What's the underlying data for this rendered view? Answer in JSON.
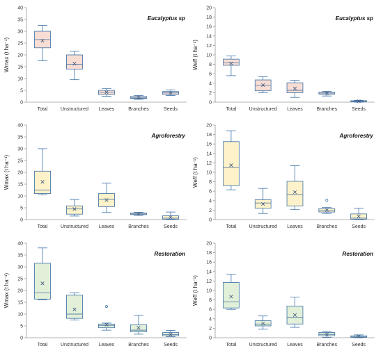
{
  "chart_data": [
    {
      "type": "box",
      "title": "Eucalyptus sp",
      "ylabel": "Wmax (t ha⁻¹)",
      "ylim": [
        0,
        40
      ],
      "yticks": [
        0,
        5,
        10,
        15,
        20,
        25,
        30,
        35,
        40
      ],
      "box_color": "#f8ddd4",
      "categories": [
        "Total",
        "Unstructured",
        "Leaves",
        "Branches",
        "Seeds"
      ],
      "boxes": [
        {
          "min": 17.5,
          "q1": 23,
          "median": 26.5,
          "q3": 30,
          "max": 32.5,
          "mean": 26,
          "outliers": []
        },
        {
          "min": 9.5,
          "q1": 14,
          "median": 16,
          "q3": 20,
          "max": 21.5,
          "mean": 16.3,
          "outliers": []
        },
        {
          "min": 2.5,
          "q1": 3.2,
          "median": 4.2,
          "q3": 5,
          "max": 5.8,
          "mean": 4.2,
          "outliers": []
        },
        {
          "min": 1.2,
          "q1": 1.5,
          "median": 1.8,
          "q3": 2.4,
          "max": 2.8,
          "mean": 1.9,
          "outliers": []
        },
        {
          "min": 2.8,
          "q1": 3.3,
          "median": 3.9,
          "q3": 4.5,
          "max": 5.2,
          "mean": 3.9,
          "outliers": []
        }
      ]
    },
    {
      "type": "box",
      "title": "Eucalyptus sp",
      "ylabel": "Weff (t ha⁻¹)",
      "ylim": [
        0,
        20
      ],
      "yticks": [
        0,
        2,
        4,
        6,
        8,
        10,
        12,
        14,
        16,
        18,
        20
      ],
      "box_color": "#f8ddd4",
      "categories": [
        "Total",
        "Unstructured",
        "Leaves",
        "Branches",
        "Seeds"
      ],
      "boxes": [
        {
          "min": 5.6,
          "q1": 7.8,
          "median": 8.3,
          "q3": 9.1,
          "max": 9.8,
          "mean": 8.2,
          "outliers": []
        },
        {
          "min": 2,
          "q1": 2.4,
          "median": 3.6,
          "q3": 4.7,
          "max": 5.4,
          "mean": 3.6,
          "outliers": []
        },
        {
          "min": 1,
          "q1": 2,
          "median": 2.5,
          "q3": 4.1,
          "max": 4.6,
          "mean": 2.9,
          "outliers": []
        },
        {
          "min": 1.3,
          "q1": 1.7,
          "median": 1.9,
          "q3": 2.1,
          "max": 2.3,
          "mean": 1.9,
          "outliers": []
        },
        {
          "min": 0,
          "q1": 0.1,
          "median": 0.2,
          "q3": 0.3,
          "max": 0.4,
          "mean": 0.2,
          "outliers": []
        }
      ]
    },
    {
      "type": "box",
      "title": "Agroforestry",
      "ylabel": "Wmax (t ha⁻¹)",
      "ylim": [
        0,
        40
      ],
      "yticks": [
        0,
        5,
        10,
        15,
        20,
        25,
        30,
        35,
        40
      ],
      "box_color": "#fdf2c9",
      "categories": [
        "Total",
        "Unstructured",
        "Leaves",
        "Branches",
        "Seeds"
      ],
      "boxes": [
        {
          "min": 10.5,
          "q1": 11,
          "median": 12.5,
          "q3": 20.5,
          "max": 30,
          "mean": 16,
          "outliers": []
        },
        {
          "min": 1.5,
          "q1": 2.3,
          "median": 4.5,
          "q3": 5.8,
          "max": 8.5,
          "mean": 4.5,
          "outliers": []
        },
        {
          "min": 3,
          "q1": 5.5,
          "median": 8.5,
          "q3": 11,
          "max": 15.5,
          "mean": 8.3,
          "outliers": []
        },
        {
          "min": 1.8,
          "q1": 2.1,
          "median": 2.4,
          "q3": 2.8,
          "max": 3.1,
          "mean": 2.4,
          "outliers": []
        },
        {
          "min": 0,
          "q1": 0.2,
          "median": 0.6,
          "q3": 1.6,
          "max": 3.2,
          "mean": 1,
          "outliers": []
        }
      ]
    },
    {
      "type": "box",
      "title": "Agroforestry",
      "ylabel": "Weff (t ha⁻¹)",
      "ylim": [
        0,
        20
      ],
      "yticks": [
        0,
        2,
        4,
        6,
        8,
        10,
        12,
        14,
        16,
        18,
        20
      ],
      "box_color": "#fdf2c9",
      "categories": [
        "Total",
        "Unstructured",
        "Leaves",
        "Branches",
        "Seeds"
      ],
      "boxes": [
        {
          "min": 6.3,
          "q1": 7.2,
          "median": 11,
          "q3": 16.5,
          "max": 18.8,
          "mean": 11.5,
          "outliers": []
        },
        {
          "min": 1.3,
          "q1": 2.4,
          "median": 3.5,
          "q3": 4.2,
          "max": 6.6,
          "mean": 3.3,
          "outliers": []
        },
        {
          "min": 2.1,
          "q1": 2.9,
          "median": 5.3,
          "q3": 8.1,
          "max": 11.4,
          "mean": 5.8,
          "outliers": []
        },
        {
          "min": 1.3,
          "q1": 1.6,
          "median": 1.9,
          "q3": 2.3,
          "max": 2.6,
          "mean": 2,
          "outliers": [
            4.1
          ]
        },
        {
          "min": 0,
          "q1": 0.1,
          "median": 0.3,
          "q3": 1.2,
          "max": 2.4,
          "mean": 0.7,
          "outliers": []
        }
      ]
    },
    {
      "type": "box",
      "title": "Restoration",
      "ylabel": "Wmax (t ha⁻¹)",
      "ylim": [
        0,
        40
      ],
      "yticks": [
        0,
        5,
        10,
        15,
        20,
        25,
        30,
        35,
        40
      ],
      "box_color": "#e2f0d9",
      "categories": [
        "Total",
        "Unstructured",
        "Leaves",
        "Branches",
        "Seeds"
      ],
      "boxes": [
        {
          "min": 16,
          "q1": 16.3,
          "median": 19,
          "q3": 31.5,
          "max": 38,
          "mean": 23,
          "outliers": []
        },
        {
          "min": 7.5,
          "q1": 8.2,
          "median": 10,
          "q3": 18,
          "max": 19,
          "mean": 12,
          "outliers": []
        },
        {
          "min": 3.2,
          "q1": 4.2,
          "median": 5.2,
          "q3": 5.8,
          "max": 6.2,
          "mean": 5.5,
          "outliers": [
            13.2
          ]
        },
        {
          "min": 1.5,
          "q1": 2.5,
          "median": 3.2,
          "q3": 5.5,
          "max": 9.5,
          "mean": 4.2,
          "outliers": []
        },
        {
          "min": 0.5,
          "q1": 0.8,
          "median": 1.3,
          "q3": 2.2,
          "max": 3.1,
          "mean": 1.4,
          "outliers": []
        }
      ]
    },
    {
      "type": "box",
      "title": "Restoration",
      "ylabel": "Weff (t ha⁻¹)",
      "ylim": [
        0,
        20
      ],
      "yticks": [
        0,
        2,
        4,
        6,
        8,
        10,
        12,
        14,
        16,
        18,
        20
      ],
      "box_color": "#e2f0d9",
      "categories": [
        "Total",
        "Unstructured",
        "Leaves",
        "Branches",
        "Seeds"
      ],
      "boxes": [
        {
          "min": 6,
          "q1": 6.3,
          "median": 7.6,
          "q3": 11.7,
          "max": 13.4,
          "mean": 8.7,
          "outliers": []
        },
        {
          "min": 1.8,
          "q1": 2.5,
          "median": 2.9,
          "q3": 3.6,
          "max": 4.6,
          "mean": 3,
          "outliers": []
        },
        {
          "min": 2.2,
          "q1": 2.9,
          "median": 4.3,
          "q3": 6.7,
          "max": 8.6,
          "mean": 4.8,
          "outliers": []
        },
        {
          "min": 0.1,
          "q1": 0.4,
          "median": 0.7,
          "q3": 1.1,
          "max": 1.3,
          "mean": 0.7,
          "outliers": []
        },
        {
          "min": 0,
          "q1": 0.1,
          "median": 0.2,
          "q3": 0.4,
          "max": 0.6,
          "mean": 0.3,
          "outliers": []
        }
      ]
    }
  ],
  "colors": {
    "whisker": "#3a6ea5",
    "median": "#5c7fa8",
    "mean_marker": "#4a6080",
    "axis": "#9a9a9a"
  }
}
